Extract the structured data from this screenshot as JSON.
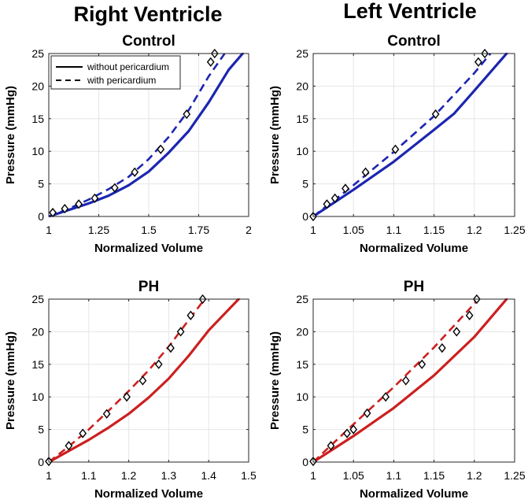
{
  "column_titles": [
    "Right Ventricle",
    "Left Ventricle"
  ],
  "colors": {
    "control": "#1c26b0",
    "ph": "#cc1f1f",
    "marker": "#000000"
  },
  "legend": {
    "entries": [
      {
        "label": "without pericardium",
        "style": "solid"
      },
      {
        "label": "with pericardium",
        "style": "dashed"
      }
    ],
    "placement": "top-left of first panel"
  },
  "chart_data": [
    {
      "type": "line",
      "column": "Right Ventricle",
      "title": "Control",
      "xlabel": "Normalized Volume",
      "ylabel": "Pressure (mmHg)",
      "xlim": [
        1,
        2
      ],
      "ylim": [
        0,
        25
      ],
      "xticks": [
        1,
        1.25,
        1.5,
        1.75,
        2
      ],
      "xtick_labels": [
        "1",
        "1.25",
        "1.5",
        "1.75",
        "2"
      ],
      "yticks": [
        0,
        5,
        10,
        15,
        20,
        25
      ],
      "ytick_labels": [
        "0",
        "5",
        "10",
        "15",
        "20",
        "25"
      ],
      "grid": true,
      "color_key": "control",
      "series": [
        {
          "name": "without pericardium",
          "style": "solid",
          "x": [
            1,
            1.1,
            1.2,
            1.3,
            1.4,
            1.5,
            1.6,
            1.7,
            1.8,
            1.9,
            1.97
          ],
          "y": [
            0,
            1,
            2,
            3.2,
            4.8,
            6.9,
            9.8,
            13.1,
            17.5,
            22.5,
            25
          ]
        },
        {
          "name": "with pericardium",
          "style": "dashed",
          "x": [
            1,
            1.1,
            1.2,
            1.3,
            1.4,
            1.5,
            1.6,
            1.7,
            1.8,
            1.88
          ],
          "y": [
            0,
            1.2,
            2.6,
            4.2,
            6.1,
            8.8,
            12.2,
            16.3,
            21.5,
            25
          ]
        },
        {
          "name": "data",
          "style": "markers",
          "x": [
            1.02,
            1.08,
            1.15,
            1.23,
            1.33,
            1.43,
            1.56,
            1.69,
            1.81,
            1.83
          ],
          "y": [
            0.6,
            1.2,
            1.9,
            2.8,
            4.4,
            6.8,
            10.3,
            15.7,
            23.7,
            25
          ]
        }
      ]
    },
    {
      "type": "line",
      "column": "Left Ventricle",
      "title": "Control",
      "xlabel": "Normalized Volume",
      "ylabel": "Pressure (mmHg)",
      "xlim": [
        1,
        1.25
      ],
      "ylim": [
        0,
        25
      ],
      "xticks": [
        1,
        1.05,
        1.1,
        1.15,
        1.2,
        1.25
      ],
      "xtick_labels": [
        "1",
        "1.05",
        "1.1",
        "1.15",
        "1.2",
        "1.25"
      ],
      "yticks": [
        0,
        5,
        10,
        15,
        20,
        25
      ],
      "ytick_labels": [
        "0",
        "5",
        "10",
        "15",
        "20",
        "25"
      ],
      "grid": true,
      "color_key": "control",
      "series": [
        {
          "name": "without pericardium",
          "style": "solid",
          "x": [
            1,
            1.05,
            1.1,
            1.15,
            1.175,
            1.2,
            1.24
          ],
          "y": [
            0,
            4.1,
            8.4,
            13.3,
            15.8,
            19.3,
            25
          ]
        },
        {
          "name": "with pericardium",
          "style": "dashed",
          "x": [
            1,
            1.05,
            1.1,
            1.15,
            1.2,
            1.22
          ],
          "y": [
            0,
            4.8,
            9.9,
            15.4,
            22,
            25
          ]
        },
        {
          "name": "data",
          "style": "markers",
          "x": [
            1,
            1.017,
            1.027,
            1.04,
            1.065,
            1.102,
            1.152,
            1.205,
            1.213
          ],
          "y": [
            0,
            1.9,
            2.8,
            4.3,
            6.8,
            10.3,
            15.7,
            23.7,
            25
          ]
        }
      ]
    },
    {
      "type": "line",
      "column": "Right Ventricle",
      "title": "PH",
      "xlabel": "Normalized Volume",
      "ylabel": "Pressure (mmHg)",
      "xlim": [
        1,
        1.5
      ],
      "ylim": [
        0,
        25
      ],
      "xticks": [
        1,
        1.1,
        1.2,
        1.3,
        1.4,
        1.5
      ],
      "xtick_labels": [
        "1",
        "1.1",
        "1.2",
        "1.3",
        "1.4",
        "1.5"
      ],
      "yticks": [
        0,
        5,
        10,
        15,
        20,
        25
      ],
      "ytick_labels": [
        "0",
        "5",
        "10",
        "15",
        "20",
        "25"
      ],
      "grid": true,
      "color_key": "ph",
      "series": [
        {
          "name": "without pericardium",
          "style": "solid",
          "x": [
            1,
            1.05,
            1.1,
            1.15,
            1.2,
            1.25,
            1.3,
            1.35,
            1.4,
            1.45,
            1.475
          ],
          "y": [
            0,
            1.7,
            3.4,
            5.3,
            7.4,
            9.9,
            12.8,
            16.3,
            20.2,
            23.4,
            25
          ]
        },
        {
          "name": "with pericardium",
          "style": "dashed",
          "x": [
            1,
            1.05,
            1.1,
            1.15,
            1.2,
            1.25,
            1.3,
            1.35,
            1.39
          ],
          "y": [
            0,
            2.4,
            5,
            7.9,
            10.9,
            14.1,
            17.7,
            21.8,
            25
          ]
        },
        {
          "name": "data",
          "style": "markers",
          "x": [
            1,
            1.05,
            1.085,
            1.145,
            1.195,
            1.235,
            1.275,
            1.305,
            1.33,
            1.355,
            1.385
          ],
          "y": [
            0.1,
            2.5,
            4.4,
            7.4,
            10,
            12.5,
            15,
            17.5,
            20,
            22.5,
            25
          ]
        }
      ]
    },
    {
      "type": "line",
      "column": "Left Ventricle",
      "title": "PH",
      "xlabel": "Normalized Volume",
      "ylabel": "Pressure (mmHg)",
      "xlim": [
        1,
        1.25
      ],
      "ylim": [
        0,
        25
      ],
      "xticks": [
        1,
        1.05,
        1.1,
        1.15,
        1.2,
        1.25
      ],
      "xtick_labels": [
        "1",
        "1.05",
        "1.1",
        "1.15",
        "1.2",
        "1.25"
      ],
      "yticks": [
        0,
        5,
        10,
        15,
        20,
        25
      ],
      "ytick_labels": [
        "0",
        "5",
        "10",
        "15",
        "20",
        "25"
      ],
      "grid": true,
      "color_key": "ph",
      "series": [
        {
          "name": "without pericardium",
          "style": "solid",
          "x": [
            1,
            1.05,
            1.1,
            1.15,
            1.2,
            1.24
          ],
          "y": [
            0,
            4,
            8.3,
            13.3,
            19.2,
            25
          ]
        },
        {
          "name": "with pericardium",
          "style": "dashed",
          "x": [
            1,
            1.05,
            1.1,
            1.15,
            1.2,
            1.205
          ],
          "y": [
            0,
            5.8,
            11.5,
            17.6,
            24.3,
            25
          ]
        },
        {
          "name": "data",
          "style": "markers",
          "x": [
            1,
            1.022,
            1.042,
            1.05,
            1.067,
            1.09,
            1.115,
            1.135,
            1.16,
            1.178,
            1.194,
            1.203
          ],
          "y": [
            0.1,
            2.5,
            4.4,
            5,
            7.5,
            10,
            12.5,
            15,
            17.5,
            20,
            22.5,
            25
          ]
        }
      ]
    }
  ]
}
